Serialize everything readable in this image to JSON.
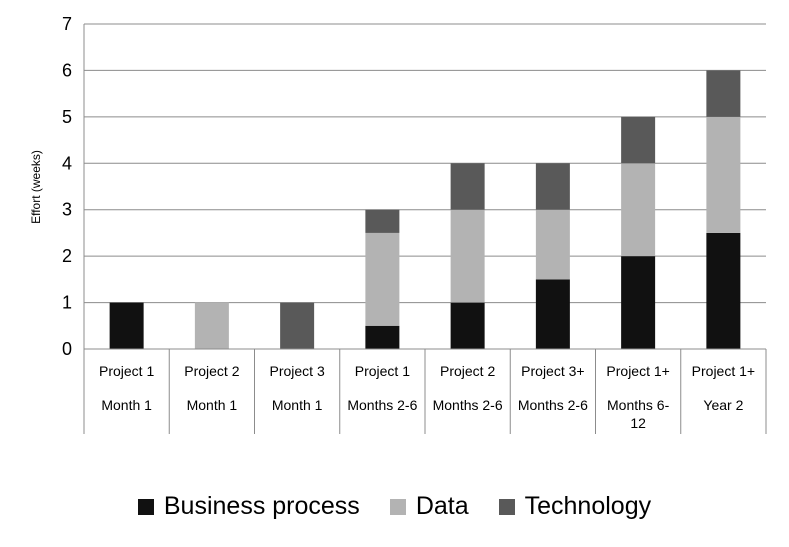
{
  "chart_data": {
    "type": "bar",
    "stacked": true,
    "categories": [
      {
        "line1": "Project 1",
        "line2": "Month 1"
      },
      {
        "line1": "Project 2",
        "line2": "Month 1"
      },
      {
        "line1": "Project 3",
        "line2": "Month 1"
      },
      {
        "line1": "Project 1",
        "line2": "Months 2-6"
      },
      {
        "line1": "Project 2",
        "line2": "Months 2-6"
      },
      {
        "line1": "Project 3+",
        "line2": "Months 2-6"
      },
      {
        "line1": "Project 1+",
        "line2": "Months 6-",
        "line3": "12"
      },
      {
        "line1": "Project 1+",
        "line2": "Year 2"
      }
    ],
    "series": [
      {
        "name": "Business process",
        "color": "#111111",
        "values": [
          1,
          0,
          0,
          0.5,
          1,
          1.5,
          2,
          2.5
        ]
      },
      {
        "name": "Data",
        "color": "#b3b3b3",
        "values": [
          0,
          1,
          0,
          2,
          2,
          1.5,
          2,
          2.5
        ]
      },
      {
        "name": "Technology",
        "color": "#595959",
        "values": [
          0,
          0,
          1,
          0.5,
          1,
          1,
          1,
          1
        ]
      }
    ],
    "ylabel": "Effort (weeks)",
    "ylim": [
      0,
      7
    ],
    "yticks": [
      0,
      1,
      2,
      3,
      4,
      5,
      6,
      7
    ],
    "grid": true,
    "legend_position": "bottom"
  }
}
